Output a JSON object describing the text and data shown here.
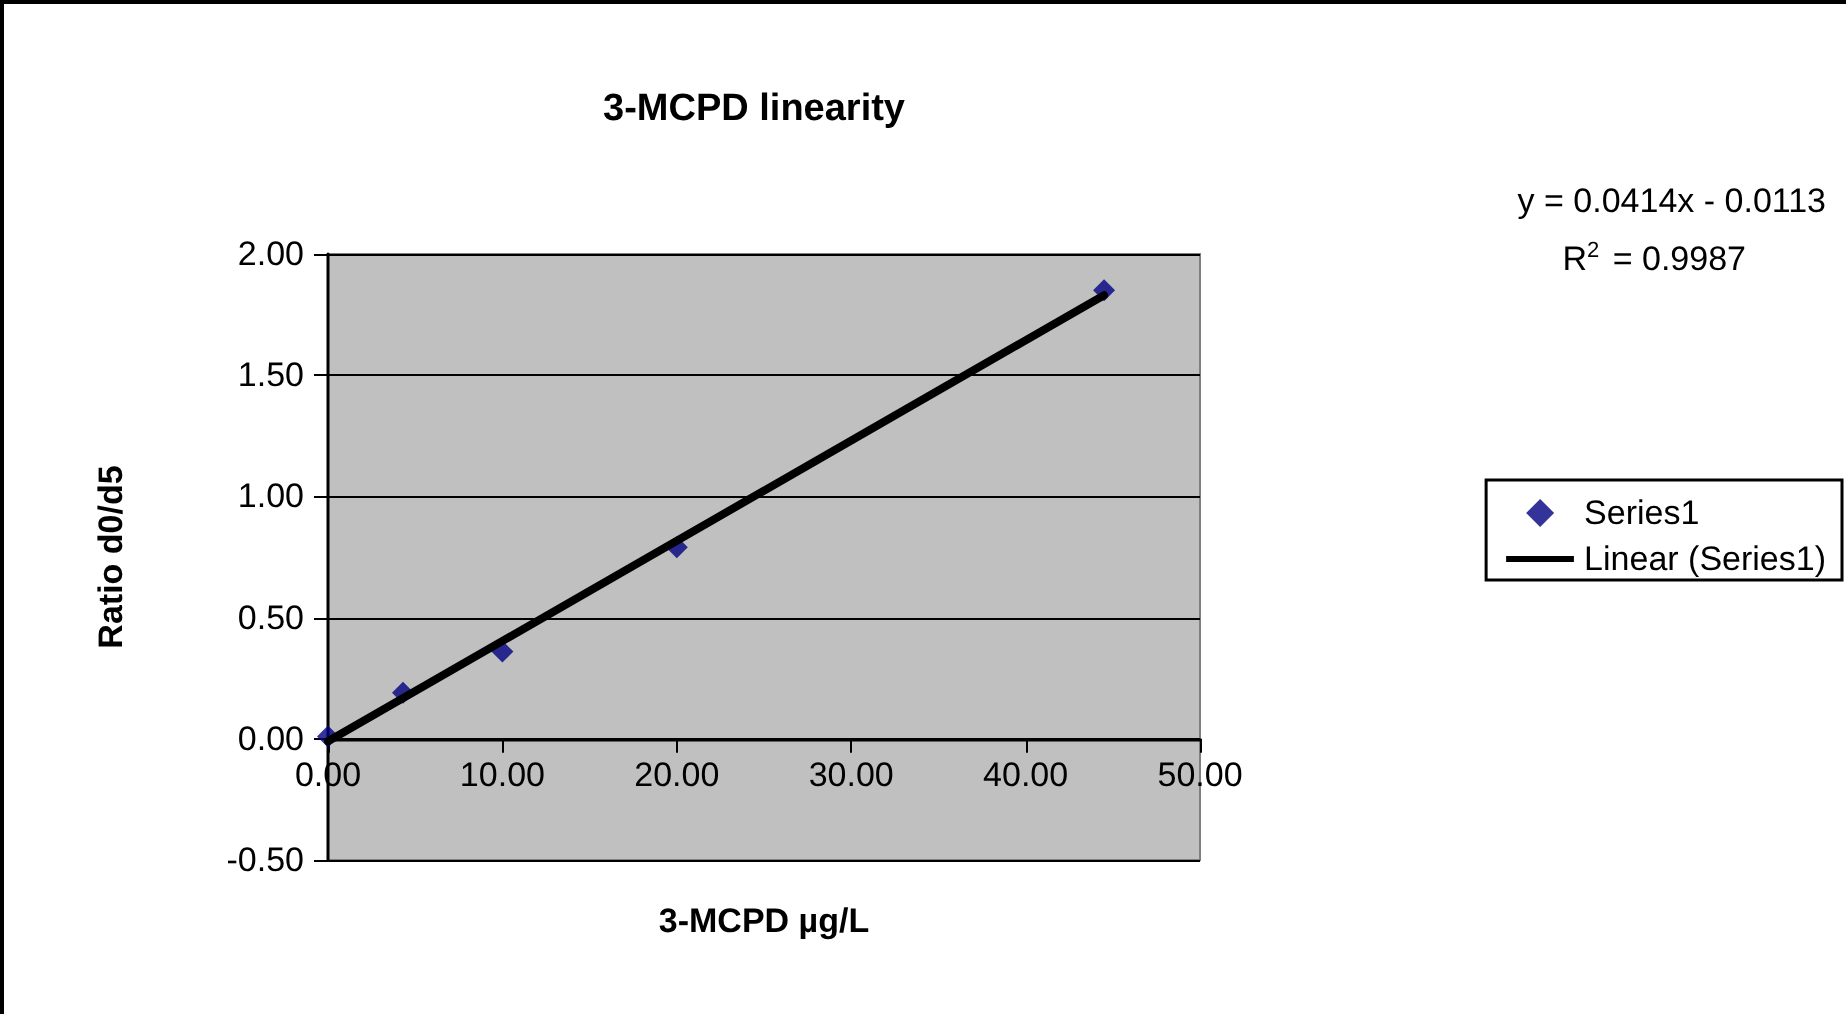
{
  "chart_data": {
    "type": "scatter",
    "title": "3-MCPD linearity",
    "xlabel": "3-MCPD µg/L",
    "ylabel": "Ratio d0/d5",
    "x": [
      0,
      4.3,
      10,
      20,
      44.5
    ],
    "series": [
      {
        "name": "Series1",
        "color": "#000080",
        "marker": "diamond",
        "values": [
          0.01,
          0.19,
          0.36,
          0.79,
          1.85
        ]
      },
      {
        "name": "Linear (Series1)",
        "type": "line",
        "color": "#000000",
        "marker": "none",
        "line_style": "solid",
        "x": [
          0,
          44.5
        ],
        "values": [
          -0.01,
          1.83
        ]
      }
    ],
    "xlim": [
      0,
      50
    ],
    "xticks": [
      {
        "value": 0,
        "label": "0.00"
      },
      {
        "value": 10,
        "label": "10.00"
      },
      {
        "value": 20,
        "label": "20.00"
      },
      {
        "value": 30,
        "label": "30.00"
      },
      {
        "value": 40,
        "label": "40.00"
      },
      {
        "value": 50,
        "label": "50.00"
      }
    ],
    "ylim": [
      -0.5,
      2
    ],
    "yticks": [
      {
        "value": -0.5,
        "label": "-0.50"
      },
      {
        "value": 0,
        "label": "0.00"
      },
      {
        "value": 0.5,
        "label": "0.50"
      },
      {
        "value": 1,
        "label": "1.00"
      },
      {
        "value": 1.5,
        "label": "1.50"
      },
      {
        "value": 2,
        "label": "2.00"
      }
    ],
    "grid": "y",
    "legend": "right",
    "annotations": [
      "y = 0.0414x - 0.0113",
      "R$^{2}$ = 0.9987"
    ]
  }
}
